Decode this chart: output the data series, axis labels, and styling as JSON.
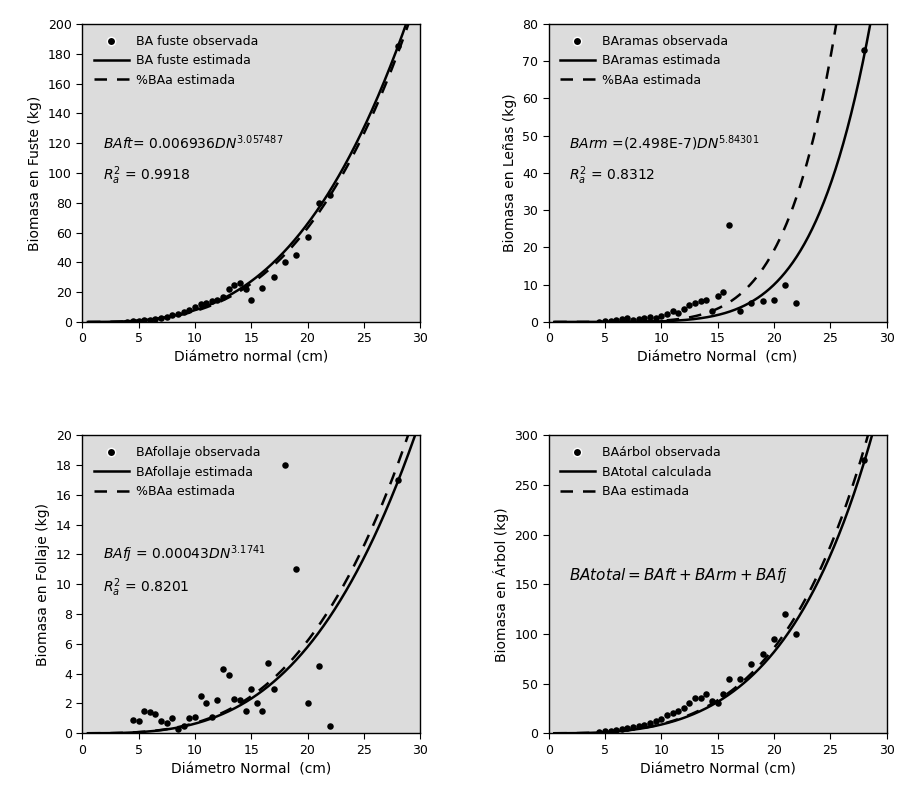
{
  "bg_color": "#dcdcdc",
  "panels": [
    {
      "ylabel": "Biomasa en Fuste (kg)",
      "xlabel": "Diámetro normal (cm)",
      "ylim": [
        0,
        200
      ],
      "xlim": [
        0,
        30
      ],
      "yticks": [
        0,
        20,
        40,
        60,
        80,
        100,
        120,
        140,
        160,
        180,
        200
      ],
      "xticks": [
        0,
        5,
        10,
        15,
        20,
        25,
        30
      ],
      "legend": [
        "BA fuste observada",
        "BA fuste estimada",
        "%BAa estimada"
      ],
      "equation_full": "$\\it{BAft}$= 0.006936$\\it{DN}^{3.057487}$",
      "r2_text": "$R^2_a$ = 0.9918",
      "coef": 0.006936,
      "exp_val": 3.057487,
      "coef_dashed": 0.0055,
      "exp_dashed": 3.12,
      "scatter_x": [
        4.0,
        4.5,
        5.0,
        5.5,
        6.0,
        6.5,
        7.0,
        7.5,
        8.0,
        8.5,
        9.0,
        9.5,
        10.0,
        10.5,
        11.0,
        11.5,
        12.0,
        12.5,
        13.0,
        13.5,
        14.0,
        14.5,
        15.0,
        16.0,
        17.0,
        18.0,
        19.0,
        20.0,
        21.0,
        22.0,
        28.0
      ],
      "scatter_y": [
        0.3,
        0.5,
        0.8,
        1.2,
        1.5,
        2.0,
        2.8,
        3.5,
        4.5,
        5.5,
        7.0,
        8.0,
        10.0,
        12.0,
        13.0,
        14.0,
        15.0,
        17.0,
        22.0,
        25.0,
        26.0,
        22.0,
        15.0,
        23.0,
        30.0,
        40.0,
        45.0,
        57.0,
        80.0,
        85.0,
        185.0
      ]
    },
    {
      "ylabel": "Biomasa en Leñas (kg)",
      "xlabel": "Diámetro Normal  (cm)",
      "ylim": [
        0,
        80
      ],
      "xlim": [
        0,
        30
      ],
      "yticks": [
        0,
        10,
        20,
        30,
        40,
        50,
        60,
        70,
        80
      ],
      "xticks": [
        0,
        5,
        10,
        15,
        20,
        25,
        30
      ],
      "legend": [
        "BAramas observada",
        "BAramas estimada",
        "%BAa estimada"
      ],
      "equation_full": "$\\it{BArm}$ =(2.498E-7)$\\it{DN}^{5.84301}$",
      "r2_text": "$R^2_a$ = 0.8312",
      "coef": 2.498e-07,
      "exp_val": 5.84301,
      "coef_dashed": 4.8e-07,
      "exp_dashed": 5.84301,
      "scatter_x": [
        4.5,
        5.0,
        5.5,
        6.0,
        6.5,
        7.0,
        7.5,
        8.0,
        8.5,
        9.0,
        9.5,
        10.0,
        10.5,
        11.0,
        11.5,
        12.0,
        12.5,
        13.0,
        13.5,
        14.0,
        14.5,
        15.0,
        15.5,
        16.0,
        17.0,
        18.0,
        19.0,
        20.0,
        21.0,
        22.0,
        28.0
      ],
      "scatter_y": [
        0.1,
        0.2,
        0.3,
        0.5,
        0.7,
        1.0,
        0.5,
        0.8,
        1.0,
        1.2,
        1.0,
        1.5,
        2.0,
        3.0,
        2.5,
        3.5,
        4.5,
        5.0,
        5.5,
        6.0,
        3.0,
        7.0,
        8.0,
        26.0,
        3.0,
        5.0,
        5.5,
        6.0,
        10.0,
        5.0,
        73.0
      ]
    },
    {
      "ylabel": "Biomasa en Follaje (kg)",
      "xlabel": "Diámetro Normal  (cm)",
      "ylim": [
        0,
        20
      ],
      "xlim": [
        0,
        30
      ],
      "yticks": [
        0,
        2,
        4,
        6,
        8,
        10,
        12,
        14,
        16,
        18,
        20
      ],
      "xticks": [
        0,
        5,
        10,
        15,
        20,
        25,
        30
      ],
      "legend": [
        "BAfollaje observada",
        "BAfollaje estimada",
        "%BAa estimada"
      ],
      "equation_full": "$\\it{BAfj}$ = 0.00043$\\it{DN}^{3.1741}$",
      "r2_text": "$R^2_a$ = 0.8201",
      "coef": 0.00043,
      "exp_val": 3.1741,
      "coef_dashed": 0.00046,
      "exp_dashed": 3.1741,
      "scatter_x": [
        4.5,
        5.0,
        5.5,
        6.0,
        6.5,
        7.0,
        7.5,
        8.0,
        8.5,
        9.0,
        9.5,
        10.0,
        10.5,
        11.0,
        11.5,
        12.0,
        12.5,
        13.0,
        13.5,
        14.0,
        14.5,
        15.0,
        15.5,
        16.0,
        16.5,
        17.0,
        18.0,
        19.0,
        20.0,
        21.0,
        22.0,
        28.0
      ],
      "scatter_y": [
        0.9,
        0.8,
        1.5,
        1.4,
        1.3,
        0.8,
        0.7,
        1.0,
        0.3,
        0.5,
        1.0,
        1.1,
        2.5,
        2.0,
        1.1,
        2.2,
        4.3,
        3.9,
        2.3,
        2.2,
        1.5,
        3.0,
        2.0,
        1.5,
        4.7,
        3.0,
        18.0,
        11.0,
        2.0,
        4.5,
        0.5,
        17.0
      ]
    },
    {
      "ylabel": "Biomasa en Árbol (kg)",
      "xlabel": "Diámetro Normal (cm)",
      "ylim": [
        0,
        300
      ],
      "xlim": [
        0,
        30
      ],
      "yticks": [
        0,
        50,
        100,
        150,
        200,
        250,
        300
      ],
      "xticks": [
        0,
        5,
        10,
        15,
        20,
        25,
        30
      ],
      "legend": [
        "BAárbol observada",
        "BAtotal calculada",
        "BAa estimada"
      ],
      "equation_full": "$\\it{BAtotal=BAft+BArm+BAfj}$",
      "r2_text": null,
      "coef_ft": 0.006936,
      "exp_ft": 3.057487,
      "coef_rm": 2.498e-07,
      "exp_rm": 5.84301,
      "coef_fj": 0.00043,
      "exp_fj": 3.1741,
      "dashed_scale": 1.05,
      "scatter_x": [
        4.5,
        5.0,
        5.5,
        6.0,
        6.5,
        7.0,
        7.5,
        8.0,
        8.5,
        9.0,
        9.5,
        10.0,
        10.5,
        11.0,
        11.5,
        12.0,
        12.5,
        13.0,
        13.5,
        14.0,
        14.5,
        15.0,
        15.5,
        16.0,
        17.0,
        18.0,
        19.0,
        20.0,
        21.0,
        22.0,
        28.0
      ],
      "scatter_y": [
        1.5,
        2.0,
        2.5,
        3.5,
        4.5,
        5.5,
        6.0,
        7.0,
        8.5,
        10.0,
        12.0,
        14.0,
        18.0,
        20.0,
        22.0,
        25.0,
        30.0,
        35.0,
        35.0,
        40.0,
        32.0,
        30.0,
        40.0,
        55.0,
        55.0,
        70.0,
        80.0,
        95.0,
        120.0,
        100.0,
        275.0
      ]
    }
  ]
}
